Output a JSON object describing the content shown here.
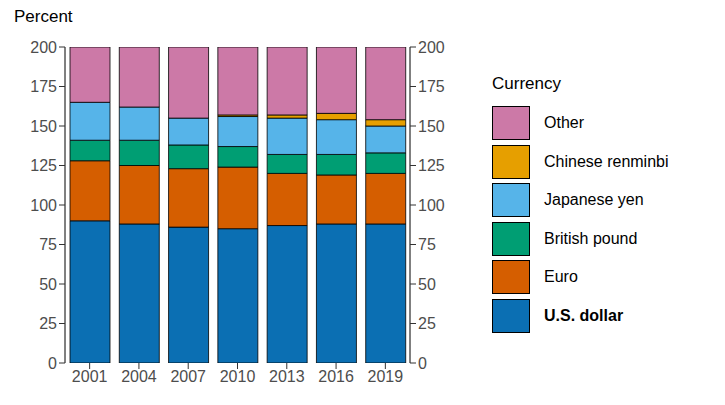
{
  "chart_data": {
    "type": "bar",
    "y_label": "Percent",
    "legend_title": "Currency",
    "legend": "right",
    "stacked": true,
    "grid": false,
    "categories": [
      "2001",
      "2004",
      "2007",
      "2010",
      "2013",
      "2016",
      "2019"
    ],
    "series": [
      {
        "name": "U.S. dollar",
        "color": "#0b6fb3",
        "values": [
          90,
          88,
          86,
          85,
          87,
          88,
          88
        ]
      },
      {
        "name": "Euro",
        "color": "#d55e00",
        "values": [
          38,
          37,
          37,
          39,
          33,
          31,
          32
        ]
      },
      {
        "name": "British pound",
        "color": "#009e73",
        "values": [
          13,
          16,
          15,
          13,
          12,
          13,
          13
        ]
      },
      {
        "name": "Japanese yen",
        "color": "#56b4e9",
        "values": [
          24,
          21,
          17,
          19,
          23,
          22,
          17
        ]
      },
      {
        "name": "Chinese renminbi",
        "color": "#e69f00",
        "values": [
          0,
          0,
          0,
          1,
          2,
          4,
          4
        ]
      },
      {
        "name": "Other",
        "color": "#cc79a7",
        "values": [
          35,
          38,
          45,
          43,
          43,
          42,
          46
        ]
      }
    ],
    "ylim": [
      0,
      200
    ],
    "yticks": [
      0,
      25,
      50,
      75,
      100,
      125,
      150,
      175,
      200
    ]
  }
}
